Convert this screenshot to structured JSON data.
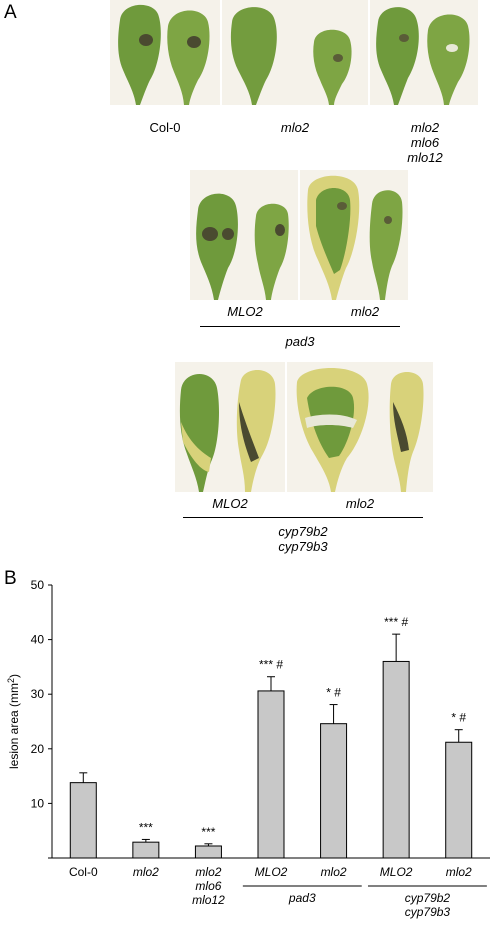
{
  "panels": {
    "a": "A",
    "b": "B"
  },
  "photo_labels": {
    "col0": "Col-0",
    "mlo2": "mlo2",
    "triple": [
      "mlo2",
      "mlo6",
      "mlo12"
    ],
    "pad3_mlo2_upper": "MLO2",
    "pad3_mlo2_lower": "mlo2",
    "pad3": "pad3",
    "cyp_mlo2_upper": "MLO2",
    "cyp_mlo2_lower": "mlo2",
    "cyp": [
      "cyp79b2",
      "cyp79b3"
    ]
  },
  "colors": {
    "bar": "#c8c8c8",
    "leaf_green": "#6f9a3c",
    "leaf_yellow": "#d8d27a",
    "lesion": "#4a4a30"
  },
  "chart_data": {
    "type": "bar",
    "ylabel": "lesion area (mm",
    "ylabel_sup": "2",
    "ylabel_tail": ")",
    "ylim": [
      0,
      50
    ],
    "yticks": [
      10,
      20,
      30,
      40,
      50
    ],
    "categories": [
      {
        "lines": [
          "Col-0"
        ],
        "italic": false
      },
      {
        "lines": [
          "mlo2"
        ],
        "italic": true
      },
      {
        "lines": [
          "mlo2",
          "mlo6",
          "mlo12"
        ],
        "italic": true
      },
      {
        "lines": [
          "MLO2"
        ],
        "italic": true
      },
      {
        "lines": [
          "mlo2"
        ],
        "italic": true
      },
      {
        "lines": [
          "MLO2"
        ],
        "italic": true
      },
      {
        "lines": [
          "mlo2"
        ],
        "italic": true
      }
    ],
    "values": [
      13.8,
      2.9,
      2.2,
      30.6,
      24.6,
      36.0,
      21.2
    ],
    "errors": [
      1.8,
      0.5,
      0.4,
      2.6,
      3.5,
      5.0,
      2.3
    ],
    "annotations": [
      "",
      "***",
      "***",
      "*** #",
      "* #",
      "*** #",
      "* #"
    ],
    "groups": [
      {
        "label": [
          "pad3"
        ],
        "from": 3,
        "to": 4
      },
      {
        "label": [
          "cyp79b2",
          "cyp79b3"
        ],
        "from": 5,
        "to": 6
      }
    ],
    "grid": false
  }
}
